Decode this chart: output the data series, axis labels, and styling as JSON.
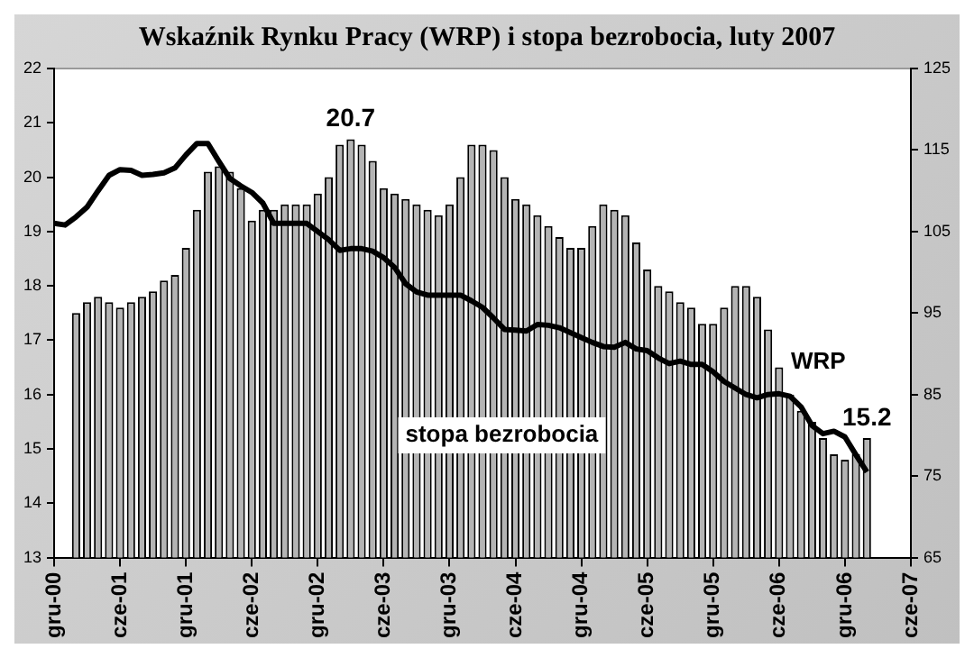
{
  "chart_data": {
    "type": "bar",
    "title": "Wskaźnik Rynku Pracy (WRP) i stopa bezrobocia, luty 2007",
    "categories": [
      "gru-00",
      null,
      null,
      null,
      null,
      null,
      "cze-01",
      null,
      null,
      null,
      null,
      null,
      "gru-01",
      null,
      null,
      null,
      null,
      null,
      "cze-02",
      null,
      null,
      null,
      null,
      null,
      "gru-02",
      null,
      null,
      null,
      null,
      null,
      "cze-03",
      null,
      null,
      null,
      null,
      null,
      "gru-03",
      null,
      null,
      null,
      null,
      null,
      "cze-04",
      null,
      null,
      null,
      null,
      null,
      "gru-04",
      null,
      null,
      null,
      null,
      null,
      "cze-05",
      null,
      null,
      null,
      null,
      null,
      "gru-05",
      null,
      null,
      null,
      null,
      null,
      "cze-06",
      null,
      null,
      null,
      null,
      null,
      "gru-06",
      null,
      null,
      null,
      null,
      null,
      "cze-07"
    ],
    "series": [
      {
        "name": "stopa bezrobocia",
        "color": "#b4b4b4",
        "values": [
          null,
          null,
          17.5,
          17.7,
          17.8,
          17.7,
          17.6,
          17.7,
          17.8,
          17.9,
          18.1,
          18.2,
          18.7,
          19.4,
          20.1,
          20.2,
          20.1,
          19.8,
          19.2,
          19.4,
          19.4,
          19.5,
          19.5,
          19.5,
          19.7,
          20.0,
          20.6,
          20.7,
          20.6,
          20.3,
          19.8,
          19.7,
          19.6,
          19.5,
          19.4,
          19.3,
          19.5,
          20.0,
          20.6,
          20.6,
          20.5,
          20.0,
          19.6,
          19.5,
          19.3,
          19.1,
          18.9,
          18.7,
          18.7,
          19.1,
          19.5,
          19.4,
          19.3,
          18.8,
          18.3,
          18.0,
          17.9,
          17.7,
          17.6,
          17.3,
          17.3,
          17.6,
          18.0,
          18.0,
          17.8,
          17.2,
          16.5,
          16.0,
          15.7,
          15.5,
          15.2,
          14.9,
          14.8,
          14.9,
          15.2,
          null,
          null,
          null,
          null
        ],
        "value_labels": [
          null,
          null,
          null,
          null,
          null,
          null,
          null,
          null,
          null,
          null,
          null,
          null,
          null,
          null,
          null,
          null,
          null,
          null,
          null,
          null,
          null,
          null,
          null,
          null,
          null,
          null,
          null,
          "20.7",
          null,
          null,
          null,
          null,
          null,
          null,
          null,
          null,
          null,
          null,
          null,
          null,
          null,
          null,
          null,
          null,
          null,
          null,
          null,
          null,
          null,
          null,
          null,
          null,
          null,
          null,
          null,
          null,
          null,
          null,
          null,
          null,
          null,
          null,
          null,
          null,
          null,
          null,
          null,
          null,
          null,
          null,
          null,
          null,
          null,
          null,
          "15.2",
          null,
          null,
          null,
          null
        ]
      },
      {
        "name": "WRP",
        "type": "line",
        "axis": "y2",
        "color": "#000000",
        "values": [
          106.0,
          105.8,
          106.8,
          108.0,
          110.0,
          111.9,
          112.6,
          112.5,
          111.9,
          112.0,
          112.2,
          112.8,
          114.4,
          115.8,
          115.8,
          113.6,
          111.5,
          110.6,
          109.8,
          108.5,
          106.0,
          106.0,
          106.0,
          106.0,
          105.0,
          104.0,
          102.7,
          102.9,
          102.9,
          102.6,
          101.8,
          100.6,
          98.6,
          97.6,
          97.2,
          97.2,
          97.2,
          97.2,
          96.5,
          95.7,
          94.4,
          93.0,
          92.9,
          92.8,
          93.6,
          93.5,
          93.2,
          92.6,
          92.0,
          91.4,
          90.9,
          90.8,
          91.4,
          90.6,
          90.4,
          89.5,
          88.8,
          89.1,
          88.7,
          88.7,
          87.8,
          86.6,
          85.8,
          85.0,
          84.6,
          85.0,
          85.1,
          84.8,
          83.5,
          81.2,
          80.2,
          80.5,
          79.8,
          77.6,
          75.5,
          null,
          null,
          null,
          null
        ]
      }
    ],
    "ylim": [
      13,
      22
    ],
    "yticks": [
      13,
      14,
      15,
      16,
      17,
      18,
      19,
      20,
      21,
      22
    ],
    "y2lim": [
      65,
      125
    ],
    "y2ticks": [
      65,
      75,
      85,
      95,
      105,
      115,
      125
    ],
    "marker": "none",
    "line_style": "solid",
    "grid": false,
    "legend": false
  }
}
